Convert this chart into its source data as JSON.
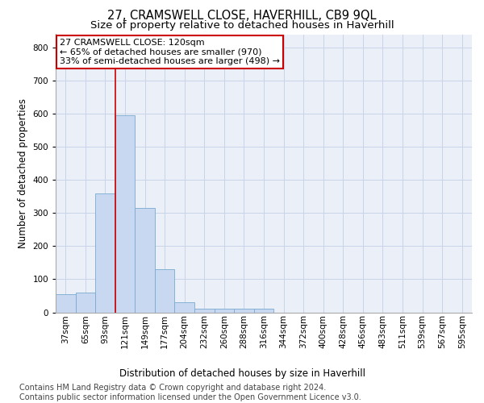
{
  "title": "27, CRAMSWELL CLOSE, HAVERHILL, CB9 9QL",
  "subtitle": "Size of property relative to detached houses in Haverhill",
  "xlabel": "Distribution of detached houses by size in Haverhill",
  "ylabel": "Number of detached properties",
  "footer_line1": "Contains HM Land Registry data © Crown copyright and database right 2024.",
  "footer_line2": "Contains public sector information licensed under the Open Government Licence v3.0.",
  "bin_labels": [
    "37sqm",
    "65sqm",
    "93sqm",
    "121sqm",
    "149sqm",
    "177sqm",
    "204sqm",
    "232sqm",
    "260sqm",
    "288sqm",
    "316sqm",
    "344sqm",
    "372sqm",
    "400sqm",
    "428sqm",
    "456sqm",
    "483sqm",
    "511sqm",
    "539sqm",
    "567sqm",
    "595sqm"
  ],
  "bar_values": [
    55,
    60,
    360,
    595,
    315,
    130,
    30,
    10,
    10,
    10,
    10,
    0,
    0,
    0,
    0,
    0,
    0,
    0,
    0,
    0,
    0
  ],
  "bar_color": "#c8d8f0",
  "bar_edge_color": "#7aaad0",
  "grid_color": "#c8d4e8",
  "background_color": "#eaeff8",
  "annotation_line1": "27 CRAMSWELL CLOSE: 120sqm",
  "annotation_line2": "← 65% of detached houses are smaller (970)",
  "annotation_line3": "33% of semi-detached houses are larger (498) →",
  "annotation_box_color": "#ffffff",
  "annotation_box_edge": "#cc0000",
  "vline_x": 2.5,
  "vline_color": "#cc0000",
  "ylim": [
    0,
    840
  ],
  "yticks": [
    0,
    100,
    200,
    300,
    400,
    500,
    600,
    700,
    800
  ],
  "title_fontsize": 10.5,
  "subtitle_fontsize": 9.5,
  "xlabel_fontsize": 8.5,
  "ylabel_fontsize": 8.5,
  "tick_fontsize": 7.5,
  "footer_fontsize": 7.0,
  "annotation_fontsize": 8.0
}
